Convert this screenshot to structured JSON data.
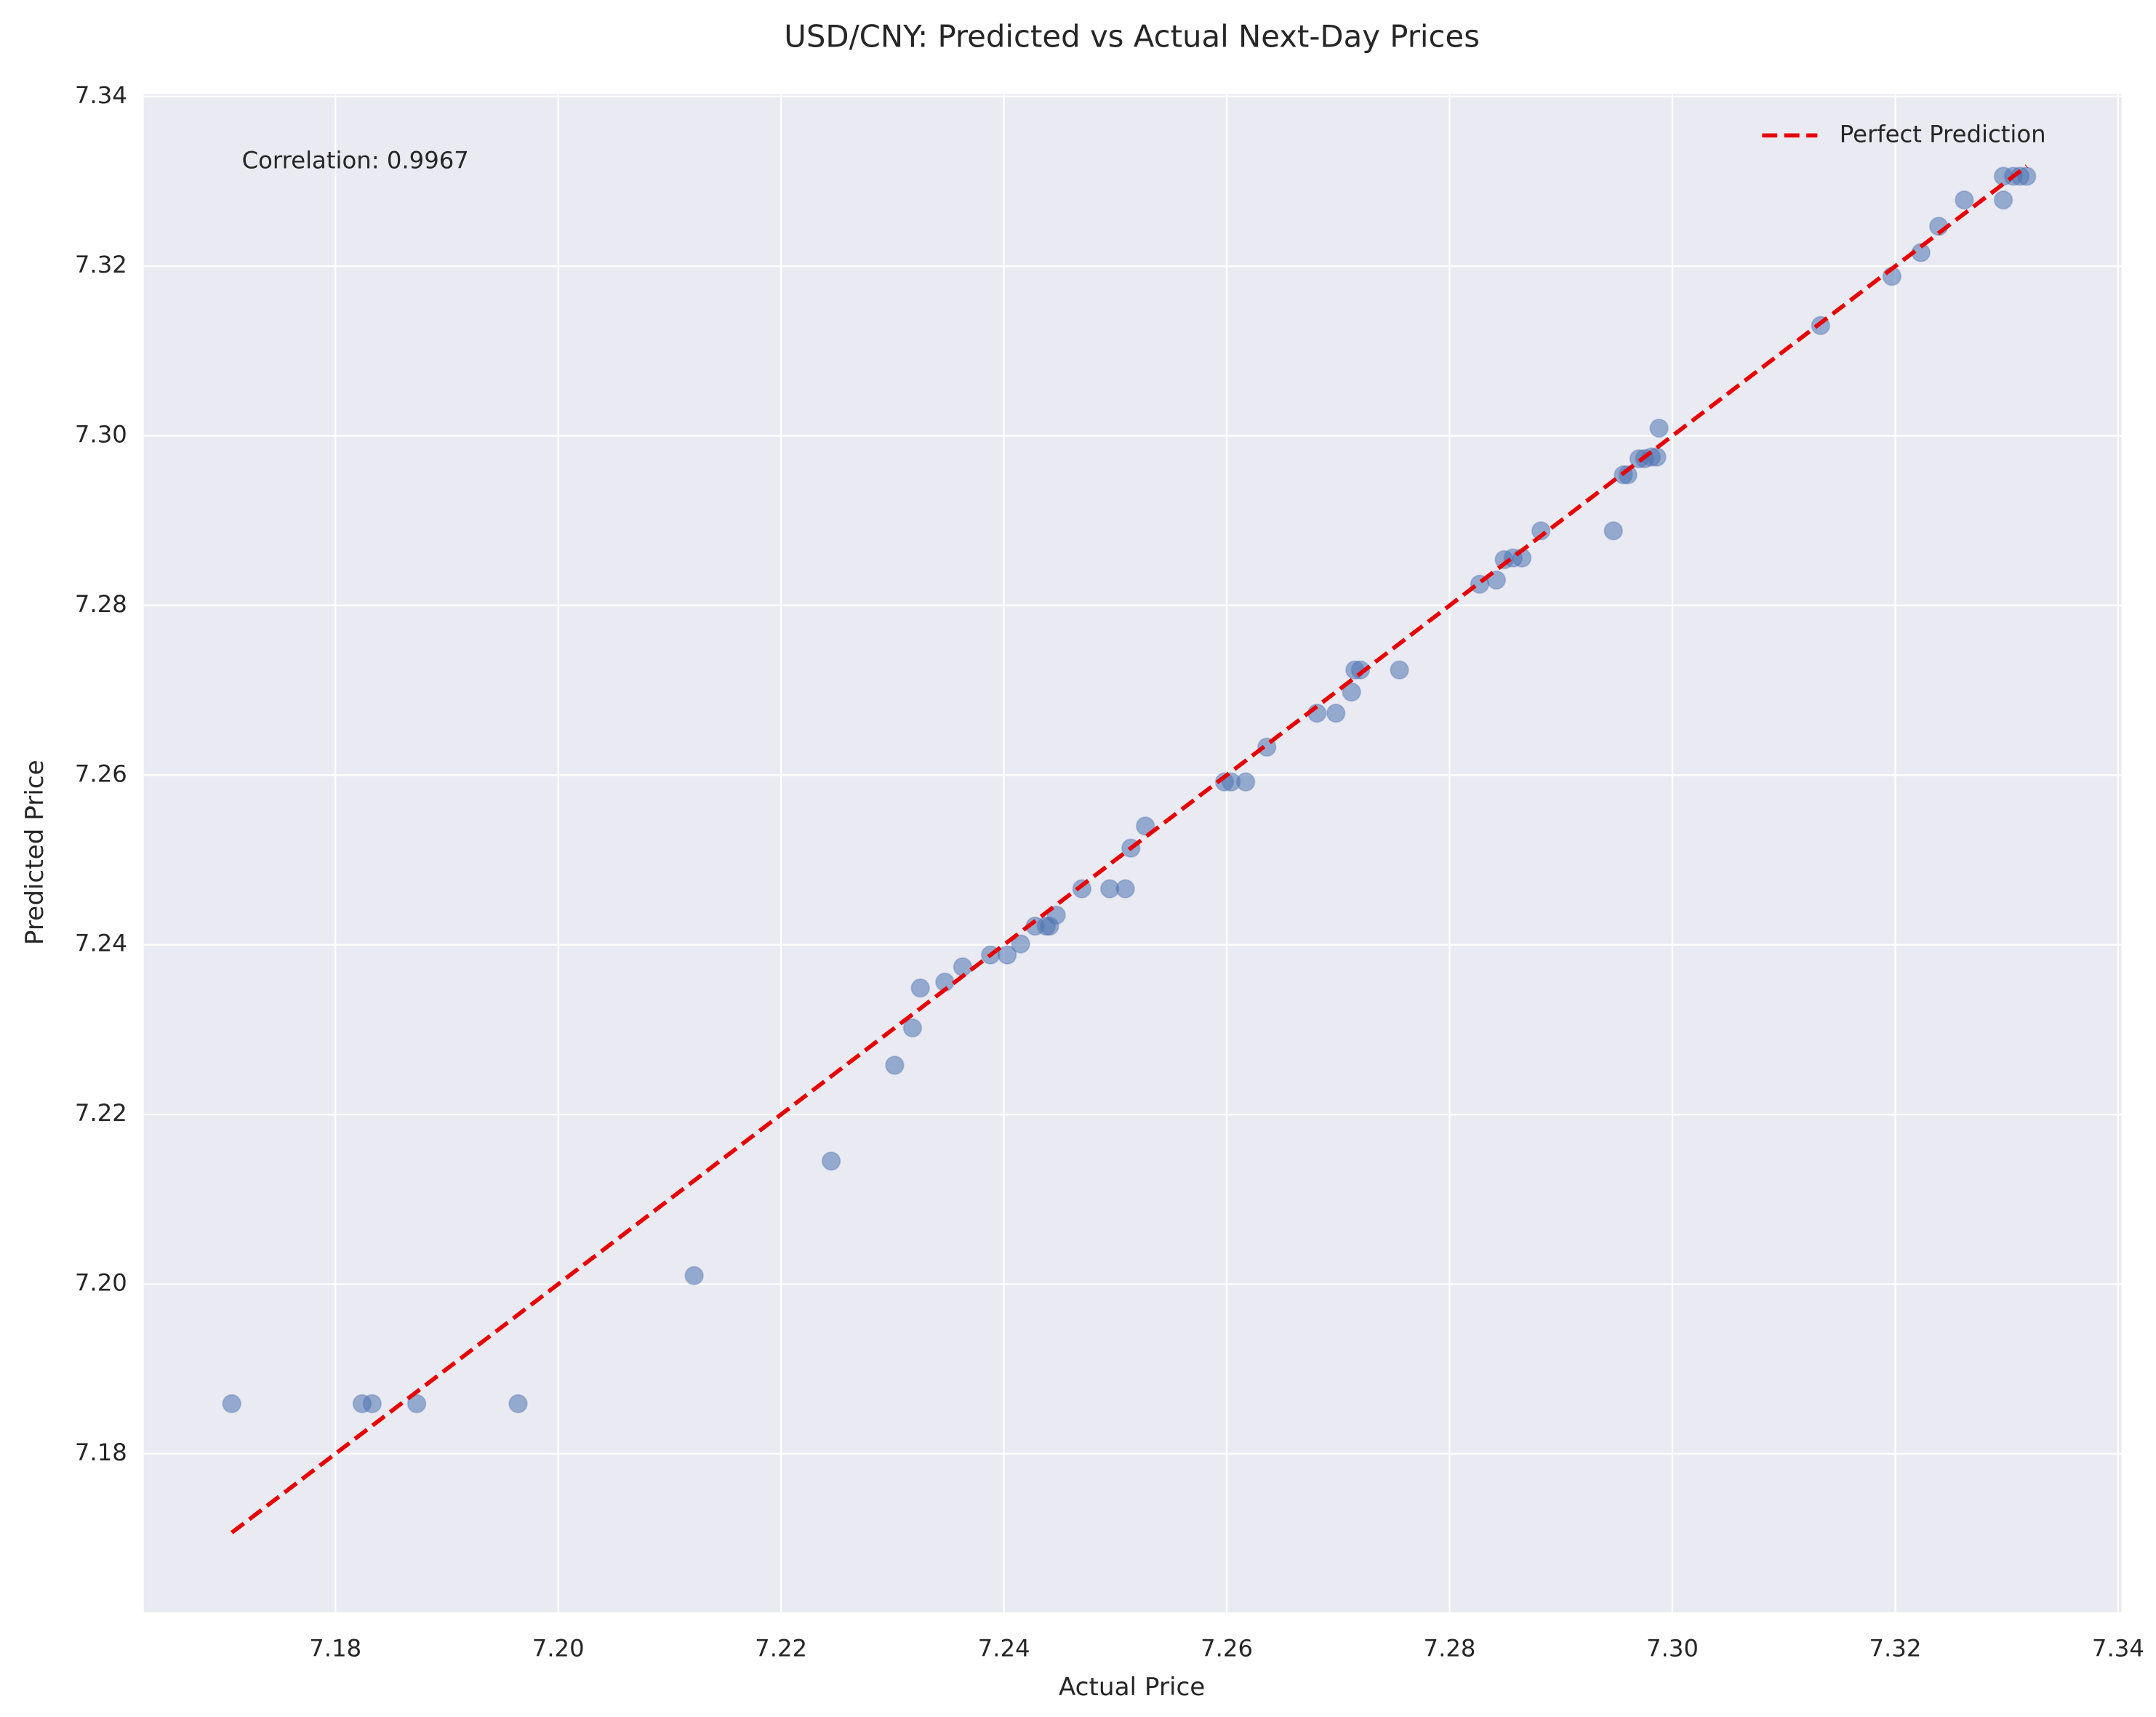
{
  "chart_data": {
    "type": "scatter",
    "title": "USD/CNY: Predicted vs Actual Next-Day Prices",
    "x_label": "Actual Price",
    "y_label": "Predicted Price",
    "annotation": "Correlation: 0.9967",
    "xlim": [
      7.1628,
      7.3403
    ],
    "ylim": [
      7.1613,
      7.3403
    ],
    "xticks": [
      7.18,
      {
        "value": 7.2,
        "label": "7.20"
      },
      7.22,
      7.24,
      7.26,
      7.28,
      {
        "value": 7.3,
        "label": "7.30"
      },
      7.32,
      7.34
    ],
    "yticks": [
      7.18,
      {
        "value": 7.2,
        "label": "7.20"
      },
      7.22,
      7.24,
      7.26,
      7.28,
      {
        "value": 7.3,
        "label": "7.30"
      },
      7.32,
      7.34
    ],
    "grid": true,
    "legend_position": "upper-right",
    "series": [
      {
        "type": "scatter",
        "color": "#4c72b0",
        "x": [
          7.1707,
          7.1824,
          7.1833,
          7.1873,
          7.1964,
          7.2122,
          7.2245,
          7.2302,
          7.2318,
          7.2325,
          7.2347,
          7.2363,
          7.2388,
          7.2403,
          7.2415,
          7.2428,
          7.2438,
          7.2441,
          7.2447,
          7.247,
          7.2495,
          7.2509,
          7.2514,
          7.2527,
          7.2598,
          7.2604,
          7.2617,
          7.2636,
          7.2681,
          7.2698,
          7.2712,
          7.2715,
          7.272,
          7.2755,
          7.2827,
          7.2842,
          7.2849,
          7.2857,
          7.2865,
          7.2882,
          7.2947,
          7.2956,
          7.296,
          7.297,
          7.2975,
          7.2981,
          7.2986,
          7.2988,
          7.3133,
          7.3197,
          7.3223,
          7.3239,
          7.3262,
          7.3297,
          7.3297,
          7.3306,
          7.3312,
          7.3318
        ],
        "y": [
          7.1859,
          7.1859,
          7.1859,
          7.1859,
          7.1859,
          7.201,
          7.2145,
          7.2258,
          7.2302,
          7.2349,
          7.2356,
          7.2374,
          7.2388,
          7.2388,
          7.2401,
          7.2422,
          7.2422,
          7.2422,
          7.2435,
          7.2466,
          7.2466,
          7.2466,
          7.2514,
          7.254,
          7.2592,
          7.2592,
          7.2592,
          7.2633,
          7.2673,
          7.2673,
          7.2698,
          7.2724,
          7.2724,
          7.2724,
          7.2825,
          7.283,
          7.2854,
          7.2856,
          7.2856,
          7.2888,
          7.2888,
          7.2954,
          7.2954,
          7.2973,
          7.2973,
          7.2975,
          7.2975,
          7.3009,
          7.313,
          7.3188,
          7.3216,
          7.3247,
          7.3278,
          7.3278,
          7.3306,
          7.3306,
          7.3306,
          7.3306
        ]
      },
      {
        "type": "line",
        "name": "Perfect Prediction",
        "color": "#e60000",
        "x": [
          7.1707,
          7.3318
        ],
        "y": [
          7.1707,
          7.3318
        ]
      }
    ]
  }
}
